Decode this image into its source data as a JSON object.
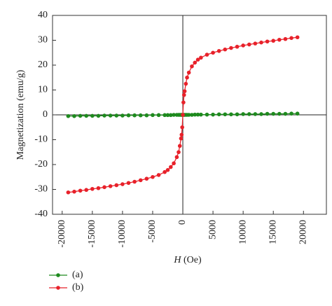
{
  "chart_data": {
    "type": "line",
    "x_label": {
      "symbol": "H",
      "unit": "(Oe)"
    },
    "y_label": "Magnetization (emu/g)",
    "x": [
      -19000,
      -18000,
      -17000,
      -16000,
      -15000,
      -14000,
      -13000,
      -12000,
      -11000,
      -10000,
      -9000,
      -8000,
      -7000,
      -6000,
      -5000,
      -4000,
      -3000,
      -2500,
      -2000,
      -1500,
      -1000,
      -700,
      -500,
      -300,
      -200,
      -100,
      0,
      100,
      200,
      300,
      500,
      700,
      1000,
      1500,
      2000,
      2500,
      3000,
      4000,
      5000,
      6000,
      7000,
      8000,
      9000,
      10000,
      11000,
      12000,
      13000,
      14000,
      15000,
      16000,
      17000,
      18000,
      19000
    ],
    "series": [
      {
        "name": "(a)",
        "color": "#1e8a1e",
        "values": [
          -0.5,
          -0.5,
          -0.4,
          -0.4,
          -0.4,
          -0.4,
          -0.3,
          -0.3,
          -0.3,
          -0.3,
          -0.2,
          -0.2,
          -0.2,
          -0.2,
          -0.1,
          -0.1,
          -0.1,
          -0.1,
          -0.1,
          0,
          0,
          0,
          0,
          0,
          0,
          0,
          0,
          0,
          0,
          0,
          0,
          0,
          0,
          0,
          0.1,
          0.1,
          0.1,
          0.1,
          0.1,
          0.2,
          0.2,
          0.2,
          0.2,
          0.3,
          0.3,
          0.3,
          0.3,
          0.4,
          0.4,
          0.4,
          0.4,
          0.5,
          0.5
        ]
      },
      {
        "name": "(b)",
        "color": "#e8212a",
        "values": [
          -31.2,
          -30.9,
          -30.5,
          -30.2,
          -29.8,
          -29.5,
          -29.1,
          -28.7,
          -28.3,
          -27.9,
          -27.4,
          -26.9,
          -26.3,
          -25.7,
          -25,
          -24.2,
          -23,
          -22.2,
          -21,
          -19.5,
          -17,
          -15,
          -12.5,
          -9.5,
          -8,
          -5,
          0,
          5,
          8,
          9.5,
          12.5,
          15,
          17,
          19.5,
          21,
          22.2,
          23,
          24.2,
          25,
          25.7,
          26.3,
          26.9,
          27.4,
          27.9,
          28.3,
          28.7,
          29.1,
          29.5,
          29.8,
          30.2,
          30.5,
          30.9,
          31.2
        ]
      }
    ],
    "xlim": [
      -21600,
      23800
    ],
    "ylim": [
      -40,
      40
    ],
    "xticks": [
      -20000,
      -15000,
      -10000,
      -5000,
      0,
      5000,
      10000,
      15000,
      20000
    ],
    "yticks": [
      -40,
      -30,
      -20,
      -10,
      0,
      10,
      20,
      30,
      40
    ],
    "legend": "bottom-left"
  }
}
